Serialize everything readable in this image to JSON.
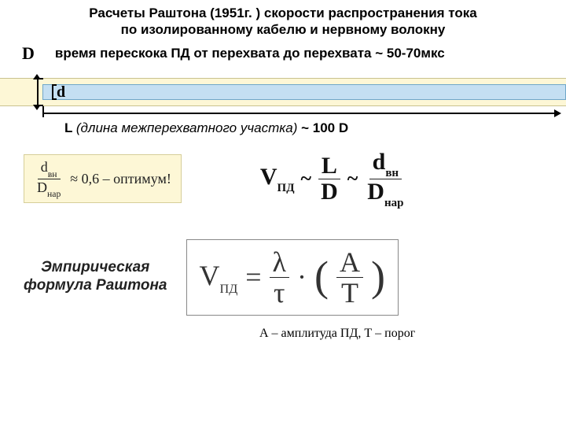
{
  "title_line1": "Расчеты Раштона (1951г. ) скорости распространения тока",
  "title_line2": "по изолированному кабелю и нервному волокну",
  "big_D": "D",
  "subtitle": "время перескока ПД от перехвата до перехвата ~ 50-70мкс",
  "d_label": "d",
  "L_prefix": "L ",
  "L_ital": "(длина межперехватного участка)",
  "L_suffix": " ~ 100 D",
  "opt": {
    "num": "d",
    "num_sub": "вн",
    "den": "D",
    "den_sub": "нар",
    "approx": "≈ 0,6 – оптимум!"
  },
  "vform": {
    "V": "V",
    "V_sub": "ПД",
    "L": "L",
    "D": "D",
    "d": "d",
    "d_sub": "вн",
    "D2": "D",
    "D2_sub": "нар"
  },
  "caption_line1": "Эмпирическая",
  "caption_line2": "формула Раштона",
  "huge": {
    "V": "V",
    "V_sub": "ПД",
    "eq": "=",
    "lam": "λ",
    "tau": "τ",
    "dot": "·",
    "A": "A",
    "T": "T"
  },
  "footer": "А – амплитуда ПД, Т – порог",
  "colors": {
    "outer_bg": "#fdf7d6",
    "inner_bg": "#c4dff2"
  }
}
